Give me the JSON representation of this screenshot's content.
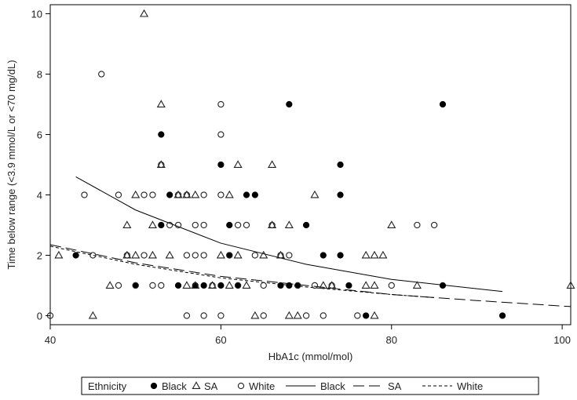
{
  "chart_data": {
    "type": "scatter",
    "xlabel": "HbA1c (mmol/mol)",
    "ylabel": "Time below range (<3.9 mmol/L or <70 mg/dL)",
    "xlim": [
      40,
      101
    ],
    "ylim": [
      -0.3,
      10.3
    ],
    "xticks": [
      "40",
      "60",
      "80",
      "100"
    ],
    "yticks": [
      "0",
      "2",
      "4",
      "6",
      "8",
      "10"
    ],
    "grid": false,
    "legend_position": "bottom",
    "legend": {
      "title": "Ethnicity",
      "items": [
        {
          "label": "Black",
          "marker": "filled-circle"
        },
        {
          "label": "SA",
          "marker": "open-triangle"
        },
        {
          "label": "White",
          "marker": "open-circle"
        },
        {
          "label": "Black",
          "line": "solid"
        },
        {
          "label": "SA",
          "line": "long-dash"
        },
        {
          "label": "White",
          "line": "short-dash"
        }
      ]
    },
    "series": [
      {
        "name": "Black",
        "marker": "filled-circle",
        "points": [
          [
            43,
            2
          ],
          [
            50,
            1
          ],
          [
            53,
            6
          ],
          [
            53,
            3
          ],
          [
            54,
            4
          ],
          [
            55,
            1
          ],
          [
            57,
            1
          ],
          [
            58,
            1
          ],
          [
            60,
            5
          ],
          [
            60,
            1
          ],
          [
            61,
            2
          ],
          [
            61,
            3
          ],
          [
            62,
            1
          ],
          [
            63,
            4
          ],
          [
            64,
            4
          ],
          [
            67,
            1
          ],
          [
            68,
            7
          ],
          [
            68,
            1
          ],
          [
            69,
            1
          ],
          [
            70,
            3
          ],
          [
            72,
            2
          ],
          [
            74,
            5
          ],
          [
            74,
            4
          ],
          [
            74,
            2
          ],
          [
            75,
            1
          ],
          [
            77,
            0
          ],
          [
            86,
            7
          ],
          [
            86,
            1
          ],
          [
            93,
            0
          ]
        ]
      },
      {
        "name": "SA",
        "marker": "open-triangle",
        "points": [
          [
            41,
            2
          ],
          [
            45,
            0
          ],
          [
            47,
            1
          ],
          [
            49,
            3
          ],
          [
            49,
            2
          ],
          [
            50,
            4
          ],
          [
            50,
            2
          ],
          [
            51,
            10
          ],
          [
            52,
            3
          ],
          [
            52,
            2
          ],
          [
            53,
            7
          ],
          [
            53,
            5
          ],
          [
            54,
            2
          ],
          [
            55,
            4
          ],
          [
            56,
            4
          ],
          [
            56,
            1
          ],
          [
            57,
            4
          ],
          [
            57,
            1
          ],
          [
            59,
            1
          ],
          [
            60,
            2
          ],
          [
            61,
            4
          ],
          [
            61,
            1
          ],
          [
            62,
            5
          ],
          [
            62,
            2
          ],
          [
            63,
            1
          ],
          [
            64,
            0
          ],
          [
            65,
            2
          ],
          [
            66,
            5
          ],
          [
            66,
            3
          ],
          [
            67,
            2
          ],
          [
            68,
            3
          ],
          [
            68,
            0
          ],
          [
            69,
            0
          ],
          [
            71,
            4
          ],
          [
            72,
            1
          ],
          [
            73,
            1
          ],
          [
            77,
            2
          ],
          [
            77,
            1
          ],
          [
            78,
            2
          ],
          [
            78,
            1
          ],
          [
            78,
            0
          ],
          [
            79,
            2
          ],
          [
            80,
            3
          ],
          [
            83,
            1
          ],
          [
            101,
            1
          ]
        ]
      },
      {
        "name": "White",
        "marker": "open-circle",
        "points": [
          [
            40,
            0
          ],
          [
            44,
            4
          ],
          [
            45,
            2
          ],
          [
            46,
            8
          ],
          [
            48,
            4
          ],
          [
            48,
            1
          ],
          [
            49,
            2
          ],
          [
            50,
            1
          ],
          [
            51,
            4
          ],
          [
            51,
            2
          ],
          [
            52,
            4
          ],
          [
            52,
            1
          ],
          [
            53,
            5
          ],
          [
            53,
            1
          ],
          [
            54,
            3
          ],
          [
            55,
            4
          ],
          [
            55,
            3
          ],
          [
            56,
            0
          ],
          [
            56,
            2
          ],
          [
            56,
            4
          ],
          [
            57,
            2
          ],
          [
            57,
            3
          ],
          [
            58,
            4
          ],
          [
            58,
            3
          ],
          [
            58,
            2
          ],
          [
            58,
            0
          ],
          [
            59,
            1
          ],
          [
            60,
            7
          ],
          [
            60,
            6
          ],
          [
            60,
            4
          ],
          [
            60,
            0
          ],
          [
            61,
            2
          ],
          [
            62,
            3
          ],
          [
            62,
            1
          ],
          [
            63,
            3
          ],
          [
            64,
            2
          ],
          [
            65,
            1
          ],
          [
            65,
            0
          ],
          [
            66,
            3
          ],
          [
            67,
            2
          ],
          [
            68,
            2
          ],
          [
            69,
            1
          ],
          [
            70,
            0
          ],
          [
            71,
            1
          ],
          [
            72,
            0
          ],
          [
            73,
            1
          ],
          [
            76,
            0
          ],
          [
            80,
            1
          ],
          [
            83,
            3
          ],
          [
            85,
            3
          ]
        ]
      }
    ],
    "fit_lines": [
      {
        "name": "Black",
        "style": "solid",
        "x": [
          43,
          50,
          60,
          70,
          80,
          93
        ],
        "y": [
          4.6,
          3.5,
          2.4,
          1.7,
          1.2,
          0.8
        ]
      },
      {
        "name": "SA",
        "style": "long-dash",
        "x": [
          40,
          50,
          60,
          70,
          80,
          90,
          101
        ],
        "y": [
          2.35,
          1.75,
          1.3,
          1.0,
          0.7,
          0.5,
          0.3
        ]
      },
      {
        "name": "White",
        "style": "short-dash",
        "x": [
          40,
          50,
          60,
          70,
          80,
          85
        ],
        "y": [
          2.3,
          1.7,
          1.25,
          0.95,
          0.7,
          0.6
        ]
      }
    ]
  }
}
